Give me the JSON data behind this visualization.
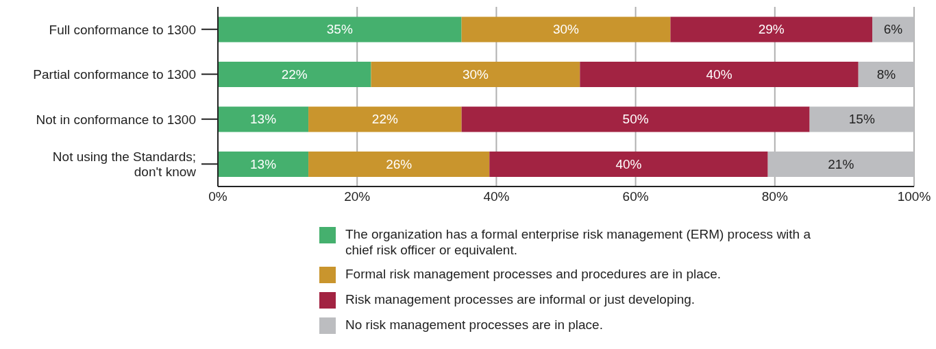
{
  "chart_data": {
    "type": "bar",
    "orientation": "horizontal",
    "stacked": true,
    "categories": [
      "Full conformance to 1300",
      "Partial conformance to 1300",
      "Not in conformance to 1300",
      "Not using the Standards; don't know"
    ],
    "series": [
      {
        "name": "The organization has a formal enterprise risk management (ERM) process with a chief risk officer or equivalent.",
        "color": "#45b06e",
        "values": [
          35,
          22,
          13,
          13
        ],
        "value_labels": [
          "35%",
          "22%",
          "13%",
          "13%"
        ]
      },
      {
        "name": "Formal risk management processes and procedures are in place.",
        "color": "#c9952d",
        "values": [
          30,
          30,
          22,
          26
        ],
        "value_labels": [
          "30%",
          "30%",
          "22%",
          "26%"
        ]
      },
      {
        "name": "Risk management processes are informal or just developing.",
        "color": "#a22342",
        "values": [
          29,
          40,
          50,
          40
        ],
        "value_labels": [
          "29%",
          "40%",
          "50%",
          "40%"
        ]
      },
      {
        "name": "No risk management processes are in place.",
        "color": "#bcbdc0",
        "values": [
          6,
          8,
          15,
          21
        ],
        "value_labels": [
          "6%",
          "8%",
          "15%",
          "21%"
        ]
      }
    ],
    "xlim": [
      0,
      100
    ],
    "xticks": [
      {
        "value": 0,
        "label": "0%"
      },
      {
        "value": 20,
        "label": "20%"
      },
      {
        "value": 40,
        "label": "40%"
      },
      {
        "value": 60,
        "label": "60%"
      },
      {
        "value": 80,
        "label": "80%"
      },
      {
        "value": 100,
        "label": "100%"
      }
    ],
    "grid": "x",
    "legend": "bottom"
  }
}
